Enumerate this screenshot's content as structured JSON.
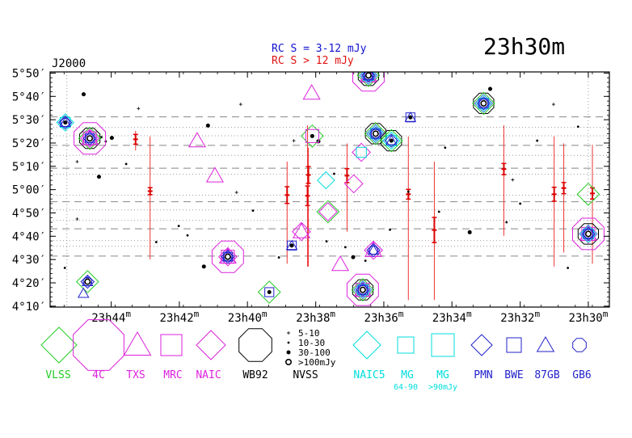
{
  "chart_data": {
    "type": "scatter",
    "title": "23h30m",
    "epoch_label": "J2000",
    "legend_rc": [
      {
        "text": "RC S = 3-12 mJy",
        "color": "#1010d0"
      },
      {
        "text": "RC S > 12 mJy",
        "color": "#e01010"
      }
    ],
    "x_ticks": [
      {
        "h": "23h44",
        "sup": "m",
        "ra": 23.7333
      },
      {
        "h": "23h42",
        "sup": "m",
        "ra": 23.7
      },
      {
        "h": "23h40",
        "sup": "m",
        "ra": 23.6667
      },
      {
        "h": "23h38",
        "sup": "m",
        "ra": 23.6333
      },
      {
        "h": "23h36",
        "sup": "m",
        "ra": 23.6
      },
      {
        "h": "23h34",
        "sup": "m",
        "ra": 23.5667
      },
      {
        "h": "23h32",
        "sup": "m",
        "ra": 23.5333
      },
      {
        "h": "23h30",
        "sup": "m",
        "ra": 23.5
      }
    ],
    "y_ticks": [
      {
        "label": "5°50′",
        "dec": 5.8333
      },
      {
        "label": "5°40′",
        "dec": 5.6667
      },
      {
        "label": "5°30′",
        "dec": 5.5
      },
      {
        "label": "5°20′",
        "dec": 5.3333
      },
      {
        "label": "5°10′",
        "dec": 5.1667
      },
      {
        "label": "5°00′",
        "dec": 5.0
      },
      {
        "label": "4°50′",
        "dec": 4.8333
      },
      {
        "label": "4°40′",
        "dec": 4.6667
      },
      {
        "label": "4°30′",
        "dec": 4.5
      },
      {
        "label": "4°20′",
        "dec": 4.3333
      },
      {
        "label": "4°10′",
        "dec": 4.1667
      }
    ],
    "xlim": [
      23.7632,
      23.4897
    ],
    "ylim": [
      4.16,
      5.8417
    ],
    "dashed_dec": [
      5.52,
      5.3167,
      5.1533,
      4.9133,
      4.72,
      4.525
    ],
    "dotted_dec": [
      5.445,
      5.385,
      5.245,
      5.11,
      4.96,
      4.855,
      4.78,
      4.635,
      4.595
    ],
    "dotted_ra": [
      23.755,
      23.5
    ],
    "rc_error_bars": [
      {
        "ra": 23.7143,
        "dec": 4.989,
        "top": 5.38,
        "bottom": 4.5,
        "err": 0.025
      },
      {
        "ra": 23.6473,
        "dec": 4.961,
        "top": 5.2,
        "bottom": 4.47,
        "err": 0.06
      },
      {
        "ra": 23.6373,
        "dec": 4.956,
        "top": 5.46,
        "bottom": 4.45,
        "err": 0.07
      },
      {
        "ra": 23.6369,
        "dec": 5.105,
        "top": 5.3,
        "bottom": 4.45,
        "err": 0.06
      },
      {
        "ra": 23.618,
        "dec": 5.1,
        "top": 5.33,
        "bottom": 4.7,
        "err": 0.05
      },
      {
        "ra": 23.588,
        "dec": 4.967,
        "top": 5.38,
        "bottom": 4.21,
        "err": 0.035
      },
      {
        "ra": 23.5753,
        "dec": 4.711,
        "top": 5.2,
        "bottom": 4.21,
        "err": 0.09
      },
      {
        "ra": 23.5413,
        "dec": 5.147,
        "top": 5.46,
        "bottom": 4.67,
        "err": 0.04
      },
      {
        "ra": 23.5167,
        "dec": 4.967,
        "top": 5.38,
        "bottom": 4.45,
        "err": 0.05
      },
      {
        "ra": 23.512,
        "dec": 5.011,
        "top": 5.33,
        "bottom": 4.55,
        "err": 0.04
      },
      {
        "ra": 23.498,
        "dec": 4.973,
        "top": 5.32,
        "bottom": 4.47,
        "err": 0.04
      },
      {
        "ra": 23.7214,
        "dec": 5.36,
        "top": 5.42,
        "bottom": 5.28,
        "err": 0.035
      }
    ],
    "sources": [
      {
        "ra": 23.7558,
        "dec": 5.48,
        "s": [
          "NAIC5",
          "MG",
          "PMN",
          "87GB",
          "GB6",
          "N30"
        ]
      },
      {
        "ra": 23.7438,
        "dec": 5.3667,
        "s": [
          "WB92",
          "VLSS",
          "4C",
          "TXS",
          "MRC",
          "NAIC",
          "PMN",
          "BWE",
          "GB6",
          "N100"
        ]
      },
      {
        "ra": 23.7449,
        "dec": 4.3417,
        "s": [
          "VLSS",
          "PMN",
          "87GB",
          "GB6",
          "N100"
        ]
      },
      {
        "ra": 23.7469,
        "dec": 4.2583,
        "s": [
          "87GB"
        ]
      },
      {
        "ra": 23.6913,
        "dec": 5.35,
        "s": [
          "TXS"
        ]
      },
      {
        "ra": 23.6826,
        "dec": 5.1,
        "s": [
          "TXS"
        ]
      },
      {
        "ra": 23.6763,
        "dec": 4.52,
        "s": [
          "4C",
          "TXS",
          "MRC",
          "NAIC",
          "PMN",
          "BWE",
          "87GB",
          "GB6",
          "N100"
        ]
      },
      {
        "ra": 23.656,
        "dec": 4.2667,
        "s": [
          "VLSS",
          "BWE",
          "N30"
        ]
      },
      {
        "ra": 23.645,
        "dec": 4.6,
        "s": [
          "BWE",
          "87GB",
          "N30"
        ]
      },
      {
        "ra": 23.6403,
        "dec": 4.7,
        "s": [
          "TXS",
          "NAIC"
        ]
      },
      {
        "ra": 23.6353,
        "dec": 5.6917,
        "s": [
          "TXS"
        ]
      },
      {
        "ra": 23.635,
        "dec": 5.3833,
        "s": [
          "VLSS",
          "MRC",
          "N30"
        ]
      },
      {
        "ra": 23.6283,
        "dec": 5.0667,
        "s": [
          "NAIC5"
        ]
      },
      {
        "ra": 23.6273,
        "dec": 4.8417,
        "s": [
          "VLSS",
          "NAIC"
        ]
      },
      {
        "ra": 23.6213,
        "dec": 4.4667,
        "s": [
          "TXS"
        ]
      },
      {
        "ra": 23.6147,
        "dec": 5.0417,
        "s": [
          "NAIC"
        ]
      },
      {
        "ra": 23.611,
        "dec": 5.2667,
        "s": [
          "NAIC",
          "MG"
        ]
      },
      {
        "ra": 23.6075,
        "dec": 5.8167,
        "s": [
          "WB92",
          "VLSS",
          "4C",
          "TXS",
          "MRC",
          "NAIC",
          "NAIC5",
          "MG",
          "PMN",
          "BWE",
          "87GB",
          "GB6",
          "N100"
        ]
      },
      {
        "ra": 23.6103,
        "dec": 4.2833,
        "s": [
          "WB92",
          "VLSS",
          "4C",
          "TXS",
          "MRC",
          "NAIC",
          "NAIC5",
          "MG",
          "PMN",
          "BWE",
          "GB6",
          "N100"
        ]
      },
      {
        "ra": 23.604,
        "dec": 5.4,
        "s": [
          "WB92",
          "VLSS",
          "NAIC",
          "NAIC5",
          "MG",
          "PMN",
          "BWE",
          "GB6",
          "N100"
        ]
      },
      {
        "ra": 23.6051,
        "dec": 4.5667,
        "s": [
          "TXS",
          "NAIC",
          "PMN",
          "87GB",
          "GB6"
        ]
      },
      {
        "ra": 23.5963,
        "dec": 5.35,
        "s": [
          "WB92",
          "VLSS",
          "NAIC5",
          "MG",
          "PMN",
          "87GB",
          "N30"
        ]
      },
      {
        "ra": 23.587,
        "dec": 5.5167,
        "s": [
          "BWE",
          "87GB",
          "N30"
        ]
      },
      {
        "ra": 23.5512,
        "dec": 5.6167,
        "s": [
          "WB92",
          "VLSS",
          "NAIC",
          "NAIC5",
          "MG",
          "PMN",
          "BWE",
          "GB6",
          "N100"
        ]
      },
      {
        "ra": 23.5,
        "dec": 4.6833,
        "s": [
          "WB92",
          "4C",
          "TXS",
          "MRC",
          "NAIC",
          "NAIC5",
          "MG",
          "PMN",
          "BWE",
          "GB6",
          "N100"
        ]
      },
      {
        "ra": 23.5,
        "dec": 4.9667,
        "s": [
          "VLSS"
        ]
      }
    ],
    "nvss_points": [
      {
        "ra": 23.7468,
        "dec": 5.6817,
        "f": 30
      },
      {
        "ra": 23.7381,
        "dec": 5.375,
        "f": 10
      },
      {
        "ra": 23.736,
        "dec": 5.345,
        "f": 10
      },
      {
        "ra": 23.733,
        "dec": 5.37,
        "f": 30
      },
      {
        "ra": 23.7393,
        "dec": 5.0917,
        "f": 30
      },
      {
        "ra": 23.726,
        "dec": 5.1833,
        "f": 10
      },
      {
        "ra": 23.7113,
        "dec": 4.625,
        "f": 10
      },
      {
        "ra": 23.7003,
        "dec": 4.74,
        "f": 10
      },
      {
        "ra": 23.696,
        "dec": 4.673,
        "f": 10
      },
      {
        "ra": 23.688,
        "dec": 4.45,
        "f": 30
      },
      {
        "ra": 23.686,
        "dec": 5.4583,
        "f": 30
      },
      {
        "ra": 23.664,
        "dec": 4.85,
        "f": 10
      },
      {
        "ra": 23.6513,
        "dec": 4.515,
        "f": 10
      },
      {
        "ra": 23.644,
        "dec": 5.35,
        "f": 5
      },
      {
        "ra": 23.632,
        "dec": 5.345,
        "f": 30
      },
      {
        "ra": 23.6243,
        "dec": 5.1133,
        "f": 10
      },
      {
        "ra": 23.6188,
        "dec": 4.5883,
        "f": 10
      },
      {
        "ra": 23.615,
        "dec": 4.5167,
        "f": 30
      },
      {
        "ra": 23.609,
        "dec": 4.4917,
        "f": 10
      },
      {
        "ra": 23.597,
        "dec": 4.7133,
        "f": 10
      },
      {
        "ra": 23.573,
        "dec": 4.8417,
        "f": 10
      },
      {
        "ra": 23.558,
        "dec": 4.695,
        "f": 30
      },
      {
        "ra": 23.54,
        "dec": 4.7667,
        "f": 10
      },
      {
        "ra": 23.5333,
        "dec": 4.9,
        "f": 10
      },
      {
        "ra": 23.51,
        "dec": 4.44,
        "f": 10
      },
      {
        "ra": 23.525,
        "dec": 5.35,
        "f": 10
      },
      {
        "ra": 23.505,
        "dec": 5.45,
        "f": 10
      },
      {
        "ra": 23.548,
        "dec": 5.72,
        "f": 30
      },
      {
        "ra": 23.57,
        "dec": 5.3,
        "f": 10
      },
      {
        "ra": 23.67,
        "dec": 5.61,
        "f": 5
      },
      {
        "ra": 23.72,
        "dec": 5.58,
        "f": 5
      },
      {
        "ra": 23.75,
        "dec": 5.2,
        "f": 5
      },
      {
        "ra": 23.756,
        "dec": 4.44,
        "f": 10
      },
      {
        "ra": 23.75,
        "dec": 4.79,
        "f": 5
      },
      {
        "ra": 23.672,
        "dec": 4.98,
        "f": 5
      },
      {
        "ra": 23.628,
        "dec": 4.63,
        "f": 10
      },
      {
        "ra": 23.588,
        "dec": 4.985,
        "f": 10
      },
      {
        "ra": 23.537,
        "dec": 5.07,
        "f": 5
      },
      {
        "ra": 23.517,
        "dec": 5.61,
        "f": 5
      }
    ]
  },
  "legend": {
    "symbols": [
      {
        "id": "VLSS",
        "label": "VLSS",
        "color": "#22cc22"
      },
      {
        "id": "4C",
        "label": "4C",
        "color": "#dd22dd"
      },
      {
        "id": "TXS",
        "label": "TXS",
        "color": "#dd22dd"
      },
      {
        "id": "MRC",
        "label": "MRC",
        "color": "#dd22dd"
      },
      {
        "id": "NAIC",
        "label": "NAIC",
        "color": "#dd22dd"
      },
      {
        "id": "WB92",
        "label": "WB92",
        "color": "#000000"
      },
      {
        "id": "NAIC5",
        "label": "NAIC5",
        "color": "#00dddd"
      },
      {
        "id": "MG",
        "label": "MG",
        "color": "#00dddd"
      },
      {
        "id": "MG90",
        "label": "MG",
        "color": "#00dddd"
      },
      {
        "id": "PMN",
        "label": "PMN",
        "color": "#2222cc"
      },
      {
        "id": "BWE",
        "label": "BWE",
        "color": "#2222cc"
      },
      {
        "id": "87GB",
        "label": "87GB",
        "color": "#2222cc"
      },
      {
        "id": "GB6",
        "label": "GB6",
        "color": "#2222cc"
      }
    ],
    "nvss_label": "NVSS",
    "nvss_sizes": [
      "5-10",
      "10-30",
      "30-100",
      ">100mJy"
    ],
    "mg_sub_a": "64-90",
    "mg_sub_b": ">90mJy",
    "nvss_color": "#000000",
    "mg_sub_color": "#00dddd"
  }
}
